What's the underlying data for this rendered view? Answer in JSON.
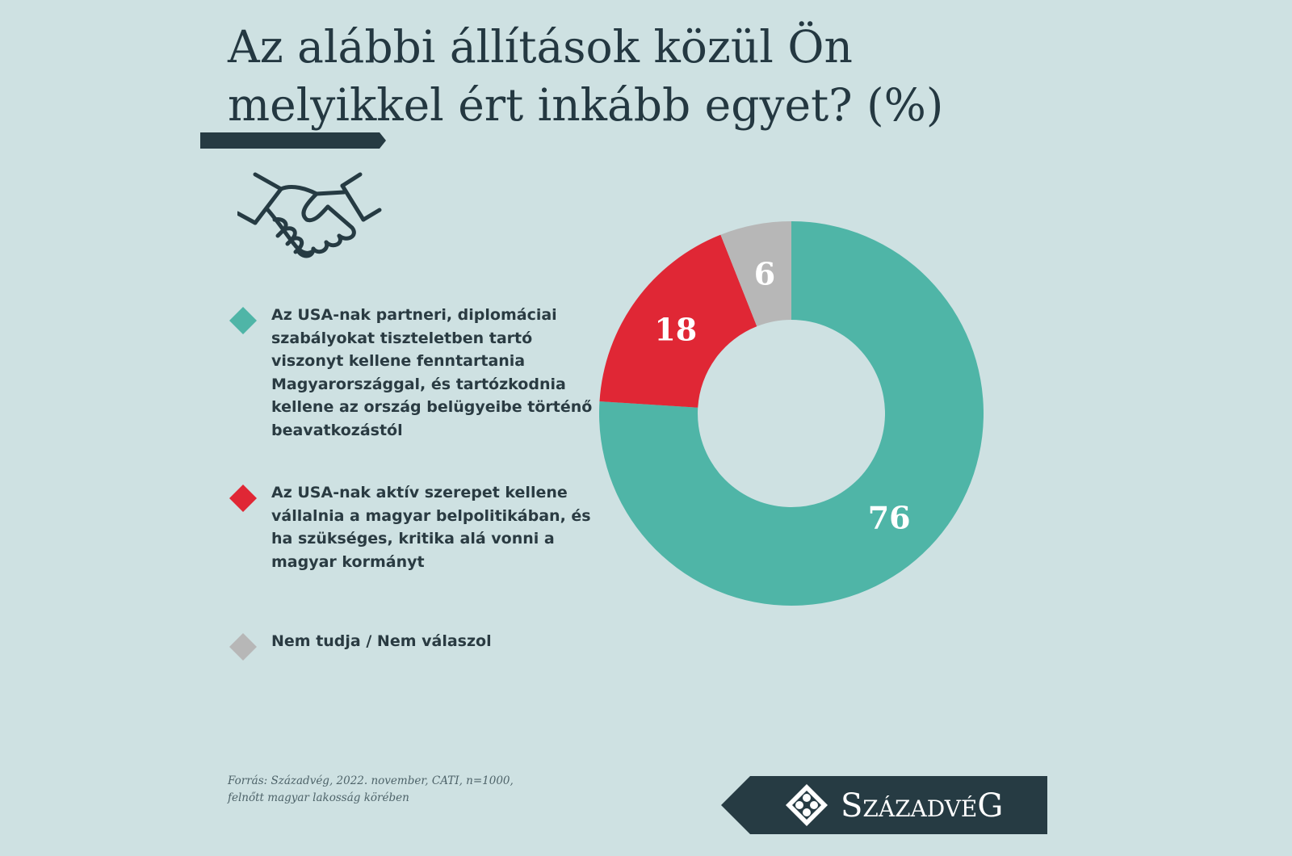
{
  "title": "Az alábbi állítások közül Ön melyikkel ért inkább egyet? (%)",
  "colors": {
    "teal": "#4fb5a7",
    "red": "#e02735",
    "gray": "#b7b7b7",
    "dark": "#263b43",
    "background": "#cee1e2"
  },
  "icon": "handshake-icon",
  "chart_data": {
    "type": "pie",
    "title": "Az alábbi állítások közül Ön melyikkel ért inkább egyet? (%)",
    "unit": "%",
    "series": [
      {
        "name": "Az USA-nak partneri, diplomáciai szabályokat tiszteletben tartó viszonyt kellene fenntartania Magyarországgal, és tartózkodnia kellene az ország belügyeibe történő beavatkozástól",
        "value": 76,
        "label": "76",
        "color": "#4fb5a7"
      },
      {
        "name": "Az USA-nak aktív szerepet kellene vállalnia a magyar belpolitikában, és ha szükséges, kritika alá vonni a magyar kormányt",
        "value": 18,
        "label": "18",
        "color": "#e02735"
      },
      {
        "name": "Nem tudja / Nem válaszol",
        "value": 6,
        "label": "6",
        "color": "#b7b7b7"
      }
    ],
    "legend_position": "left"
  },
  "source": {
    "line1": "Forrás: Századvég, 2022. november, CATI, n=1000,",
    "line2": "felnőtt magyar lakosság körében"
  },
  "logo": {
    "text": "SzázadvéG"
  }
}
